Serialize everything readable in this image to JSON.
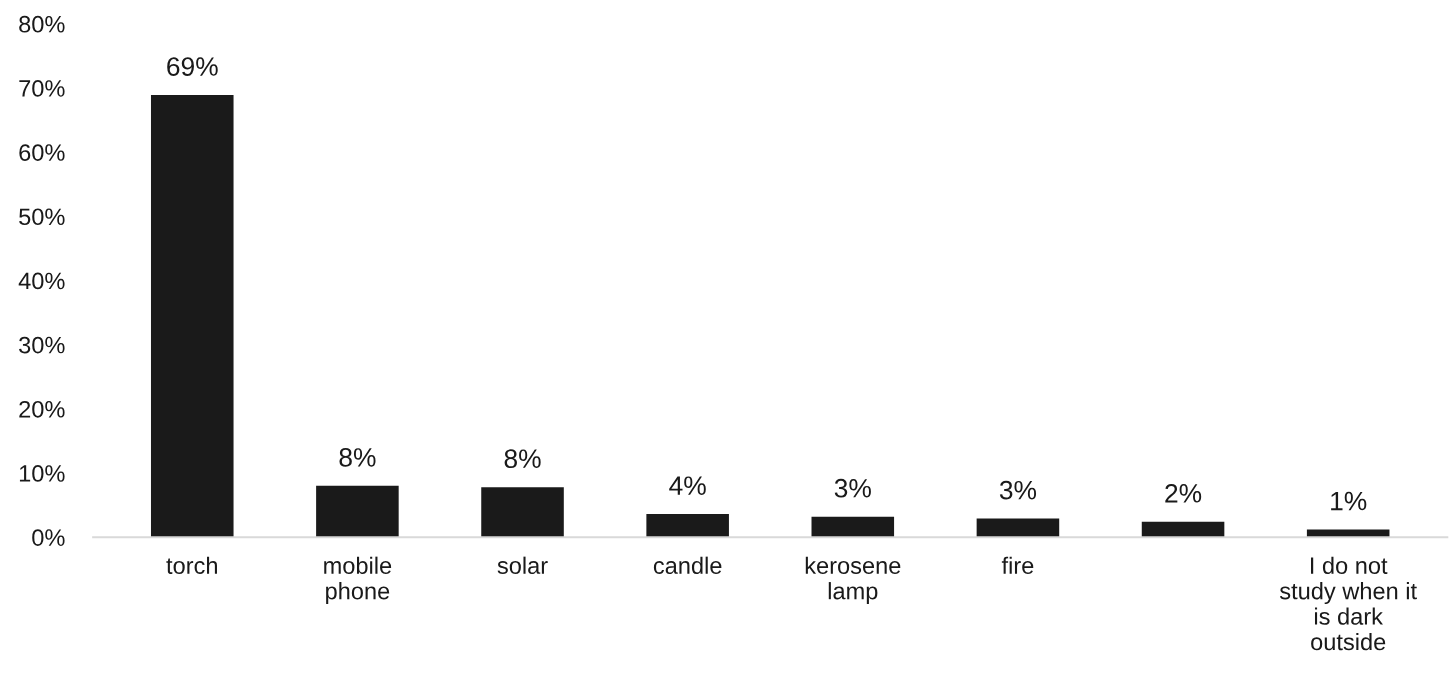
{
  "chart_data": {
    "type": "bar",
    "categories": [
      "torch",
      "mobile\nphone",
      "solar",
      "candle",
      "kerosene\nlamp",
      "fire",
      null,
      "I do not\nstudy when it\nis dark\noutside"
    ],
    "values": [
      68.9,
      8.0,
      7.8,
      3.6,
      3.2,
      2.9,
      2.4,
      1.2
    ],
    "value_labels": [
      "69%",
      "8%",
      "8%",
      "4%",
      "3%",
      "3%",
      "2%",
      "1%"
    ],
    "color": "#1a1a1a",
    "ylim": [
      0,
      80
    ],
    "yticks": [
      {
        "value": 0,
        "label": "0%"
      },
      {
        "value": 10,
        "label": "10%"
      },
      {
        "value": 20,
        "label": "20%"
      },
      {
        "value": 30,
        "label": "30%"
      },
      {
        "value": 40,
        "label": "40%"
      },
      {
        "value": 50,
        "label": "50%"
      },
      {
        "value": 60,
        "label": "60%"
      },
      {
        "value": 70,
        "label": "70%"
      },
      {
        "value": 80,
        "label": "80%"
      }
    ],
    "grid": false
  }
}
